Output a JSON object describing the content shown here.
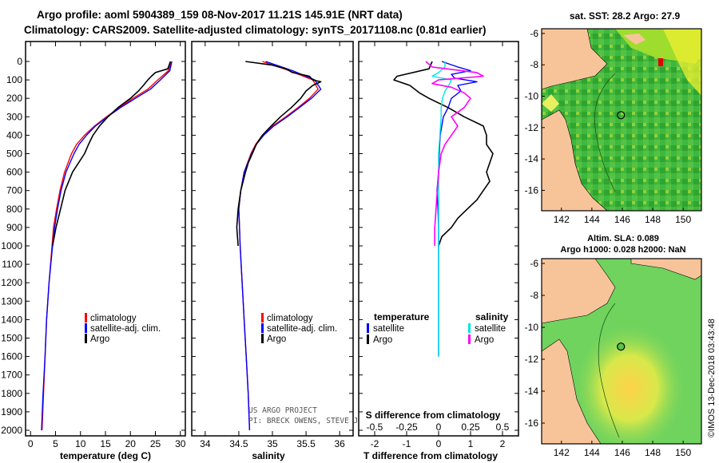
{
  "title": {
    "line1": "Argo profile: aoml 5904389_159 08-Nov-2017 11.21S 145.91E (NRT data)",
    "line2": "Climatology: CARS2009. Satellite-adjusted climatology: synTS_20171108.nc (0.81d earlier)"
  },
  "colors": {
    "climatology": "#ff0000",
    "satellite": "#0000ff",
    "argo": "#000000",
    "sal_satellite": "#00e5e5",
    "sal_argo": "#ff00ff",
    "land": "#f7c49a"
  },
  "stamp": "©IMOS 13-Dec-2018 03:43:48",
  "credit": {
    "line1": "US ARGO PROJECT",
    "line2": "PI: BRECK OWENS, STEVE JAYNE, P.E. ROBBINS"
  },
  "chart_data": [
    {
      "type": "line",
      "id": "temperature",
      "xlabel": "temperature (deg C)",
      "ylabel": "",
      "xlim": [
        -1,
        31
      ],
      "ylim": [
        2080,
        0
      ],
      "xticks": [
        "0",
        "5",
        "10",
        "15",
        "20",
        "25",
        "30"
      ],
      "yticks": [
        "0",
        "100",
        "200",
        "300",
        "400",
        "500",
        "600",
        "700",
        "800",
        "900",
        "1000",
        "1100",
        "1200",
        "1300",
        "1400",
        "1500",
        "1600",
        "1700",
        "1800",
        "1900",
        "2000"
      ],
      "legend": [
        "climatology",
        "satellite-adj. clim.",
        "Argo"
      ],
      "series": [
        {
          "name": "climatology",
          "color": "#ff0000",
          "depth": [
            0,
            50,
            100,
            150,
            200,
            250,
            300,
            350,
            400,
            450,
            500,
            600,
            700,
            800,
            900,
            1000,
            1200,
            1400,
            1600,
            1800,
            2000
          ],
          "values": [
            28.2,
            27.6,
            25.5,
            23.5,
            20.5,
            17.8,
            15.2,
            12.8,
            10.8,
            9.2,
            8.2,
            6.8,
            5.9,
            5.2,
            4.6,
            4.3,
            3.7,
            3.2,
            2.9,
            2.6,
            2.3
          ]
        },
        {
          "name": "satellite-adj. clim.",
          "color": "#0000ff",
          "depth": [
            0,
            50,
            100,
            150,
            200,
            250,
            300,
            350,
            400,
            450,
            500,
            600,
            700,
            800,
            900,
            1000,
            1200,
            1400,
            1600,
            1800,
            2000
          ],
          "values": [
            28.3,
            27.9,
            26.0,
            24.0,
            21.0,
            18.0,
            15.4,
            13.0,
            11.2,
            9.7,
            8.7,
            7.1,
            6.1,
            5.4,
            4.8,
            4.4,
            3.7,
            3.2,
            2.9,
            2.5,
            2.2
          ]
        },
        {
          "name": "Argo",
          "color": "#000000",
          "depth": [
            0,
            40,
            60,
            80,
            100,
            130,
            160,
            200,
            250,
            300,
            350,
            400,
            450,
            500,
            550,
            600,
            700,
            800,
            900,
            1000
          ],
          "values": [
            28.0,
            27.5,
            25.0,
            24.2,
            23.5,
            22.6,
            21.6,
            20.0,
            17.5,
            15.5,
            13.8,
            12.5,
            11.6,
            10.8,
            9.6,
            8.4,
            6.9,
            6.0,
            5.1,
            4.4
          ]
        }
      ]
    },
    {
      "type": "line",
      "id": "salinity",
      "xlabel": "salinity",
      "ylabel": "",
      "xlim": [
        33.8,
        36.2
      ],
      "ylim": [
        2080,
        0
      ],
      "xticks": [
        "34",
        "34.5",
        "35",
        "35.5",
        "36"
      ],
      "legend": [
        "climatology",
        "satellite-adj. clim.",
        "Argo"
      ],
      "series": [
        {
          "name": "climatology",
          "color": "#ff0000",
          "depth": [
            0,
            50,
            100,
            150,
            200,
            250,
            300,
            350,
            400,
            450,
            500,
            600,
            700,
            800,
            900,
            1000,
            1200,
            1400,
            1600,
            1800,
            2000
          ],
          "values": [
            34.85,
            35.25,
            35.6,
            35.68,
            35.55,
            35.38,
            35.2,
            35.0,
            34.85,
            34.75,
            34.68,
            34.58,
            34.53,
            34.5,
            34.51,
            34.52,
            34.55,
            34.58,
            34.61,
            34.64,
            34.66
          ]
        },
        {
          "name": "satellite-adj. clim.",
          "color": "#0000ff",
          "depth": [
            0,
            50,
            100,
            150,
            200,
            250,
            300,
            350,
            400,
            450,
            500,
            600,
            700,
            800,
            900,
            1000,
            1200,
            1400,
            1600,
            1800,
            2000
          ],
          "values": [
            34.9,
            35.3,
            35.63,
            35.72,
            35.58,
            35.4,
            35.22,
            35.02,
            34.87,
            34.76,
            34.69,
            34.58,
            34.53,
            34.5,
            34.51,
            34.52,
            34.55,
            34.58,
            34.61,
            34.64,
            34.66
          ]
        },
        {
          "name": "Argo",
          "color": "#000000",
          "depth": [
            0,
            20,
            40,
            60,
            80,
            100,
            110,
            130,
            160,
            200,
            250,
            300,
            350,
            400,
            450,
            500,
            550,
            600,
            700,
            800,
            900,
            1000
          ],
          "values": [
            34.6,
            35.0,
            35.2,
            35.3,
            35.55,
            35.6,
            35.72,
            35.6,
            35.5,
            35.42,
            35.28,
            35.12,
            34.98,
            34.85,
            34.76,
            34.7,
            34.64,
            34.6,
            34.53,
            34.49,
            34.47,
            34.49
          ]
        }
      ]
    },
    {
      "type": "line",
      "id": "difference",
      "xlabel": "T difference from climatology",
      "xlabel_top": "S difference from climatology",
      "xlim": [
        -2.5,
        2.5
      ],
      "ylim": [
        2080,
        0
      ],
      "xticks": [
        "-2",
        "-1",
        "0",
        "1",
        "2"
      ],
      "xticks_sal": [
        "-0.5",
        "-0.25",
        "0",
        "0.25",
        "0.5"
      ],
      "legend_left_title": "temperature",
      "legend_right_title": "salinity",
      "legend_left": [
        "satellite",
        "Argo"
      ],
      "legend_right": [
        "satellite",
        "Argo"
      ],
      "series": [
        {
          "name": "T satellite",
          "color": "#0000ff",
          "depth": [
            0,
            30,
            50,
            70,
            90,
            110,
            130,
            160,
            200,
            250,
            300,
            400,
            500,
            600,
            700,
            800,
            900,
            1000,
            1200,
            1400,
            1600
          ],
          "values": [
            0.1,
            0.6,
            1.0,
            0.4,
            0.5,
            1.2,
            0.6,
            0.7,
            0.4,
            0.3,
            0.15,
            0.05,
            0.02,
            0.0,
            -0.05,
            -0.02,
            0.0,
            0.0,
            0.0,
            0.0,
            0.0
          ]
        },
        {
          "name": "T Argo",
          "color": "#000000",
          "depth": [
            0,
            40,
            80,
            100,
            130,
            170,
            200,
            250,
            300,
            350,
            400,
            450,
            500,
            550,
            600,
            650,
            700,
            750,
            800,
            850,
            900,
            950,
            1000
          ],
          "values": [
            -0.2,
            -0.3,
            -1.3,
            -1.4,
            -0.9,
            -0.6,
            -0.3,
            0.3,
            0.8,
            1.4,
            1.5,
            1.5,
            1.7,
            1.6,
            1.5,
            1.6,
            1.4,
            1.2,
            0.9,
            0.6,
            0.4,
            0.1,
            0.0
          ]
        },
        {
          "name": "S satellite",
          "color": "#00e5e5",
          "depth": [
            0,
            30,
            60,
            80,
            100,
            130,
            160,
            200,
            250,
            300,
            400,
            500,
            600,
            700,
            800,
            900,
            1000,
            1200,
            1400,
            1600
          ],
          "values": [
            0.05,
            0.05,
            0.0,
            -0.05,
            0.1,
            0.08,
            0.05,
            0.03,
            0.02,
            0.02,
            0.01,
            0.0,
            0.0,
            0.0,
            0.0,
            0.0,
            0.0,
            0.0,
            0.0,
            0.0
          ]
        },
        {
          "name": "S Argo",
          "color": "#ff00ff",
          "depth": [
            0,
            30,
            60,
            80,
            100,
            120,
            140,
            170,
            200,
            250,
            300,
            350,
            400,
            450,
            500,
            600,
            700,
            800,
            900,
            1000
          ],
          "values": [
            -0.1,
            -0.05,
            0.3,
            0.35,
            0.0,
            -0.05,
            0.1,
            0.2,
            0.25,
            0.2,
            0.1,
            0.15,
            0.1,
            0.05,
            0.02,
            0.0,
            -0.01,
            -0.02,
            -0.03,
            -0.03
          ]
        }
      ]
    }
  ],
  "maps": [
    {
      "id": "sst-map",
      "title": "sat. SST: 28.2  Argo: 27.9",
      "xticks": [
        "142",
        "144",
        "146",
        "148",
        "150"
      ],
      "yticks": [
        "-6",
        "-8",
        "-10",
        "-12",
        "-14",
        "-16"
      ],
      "xlim": [
        140.7,
        151.2
      ],
      "ylim": [
        -5.7,
        -17.3
      ],
      "float_lon": 145.91,
      "float_lat": -11.21
    },
    {
      "id": "sla-map",
      "title_line1": "Altim. SLA: 0.089",
      "title_line2": "Argo h1000: 0.028 h2000: NaN",
      "xticks": [
        "142",
        "144",
        "146",
        "148",
        "150"
      ],
      "yticks": [
        "-6",
        "-8",
        "-10",
        "-12",
        "-14",
        "-16"
      ],
      "xlim": [
        140.7,
        151.2
      ],
      "ylim": [
        -5.7,
        -17.3
      ],
      "float_lon": 145.91,
      "float_lat": -11.21
    }
  ]
}
